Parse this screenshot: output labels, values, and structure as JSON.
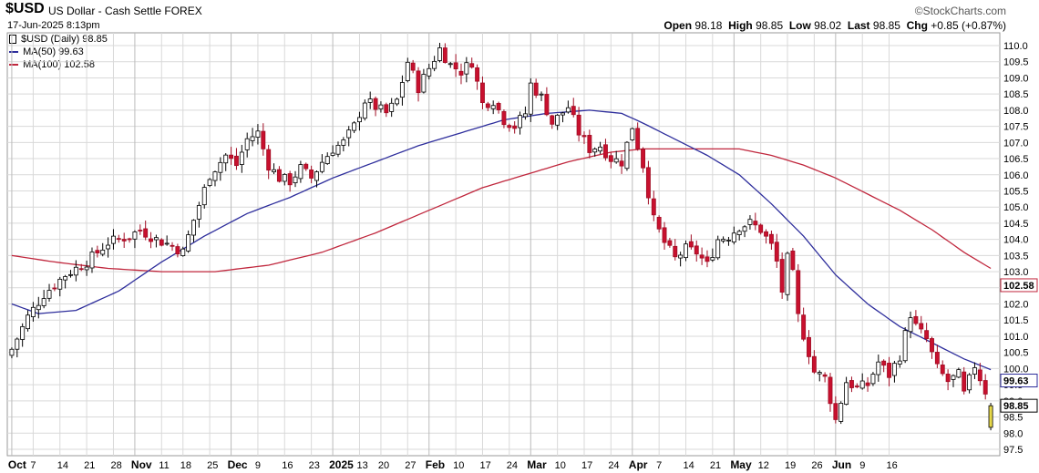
{
  "header": {
    "symbol": "$USD",
    "name": "US Dollar - Cash Settle",
    "exchange": "FOREX",
    "date": "17-Jun-2025 8:13pm",
    "brand": "©StockCharts.com",
    "open_label": "Open",
    "open": "98.18",
    "high_label": "High",
    "high": "98.85",
    "low_label": "Low",
    "low": "98.02",
    "last_label": "Last",
    "last": "98.85",
    "chg_label": "Chg",
    "chg": "+0.85 (+0.87%)"
  },
  "legend": {
    "price": "$USD (Daily) 98.85",
    "ma50": "MA(50) 99.63",
    "ma100": "MA(100) 102.58"
  },
  "colors": {
    "up": "#ffffff",
    "up_border": "#000000",
    "down": "#c8102e",
    "down_border": "#a00d24",
    "black_candle": "#000000",
    "last_candle": "#e6d84a",
    "ma50": "#2e2e9c",
    "ma100": "#c0273d",
    "grid": "#d9d9d9"
  },
  "chart_data": {
    "type": "candlestick",
    "series_name": "$USD (Daily)",
    "ylim": [
      97.5,
      110.0
    ],
    "y_ticks": [
      "97.5",
      "98.0",
      "98.5",
      "99.0",
      "99.5",
      "100.0",
      "100.5",
      "101.0",
      "101.5",
      "102.0",
      "102.5",
      "103.0",
      "103.5",
      "104.0",
      "104.5",
      "105.0",
      "105.5",
      "106.0",
      "106.5",
      "107.0",
      "107.5",
      "108.0",
      "108.5",
      "109.0",
      "109.5",
      "110.0"
    ],
    "x_ticks": [
      "Oct",
      "7",
      "14",
      "21",
      "28",
      "Nov",
      "11",
      "18",
      "25",
      "Dec",
      "9",
      "16",
      "23",
      "2025",
      "13",
      "20",
      "27",
      "Feb",
      "10",
      "17",
      "24",
      "Mar",
      "10",
      "17",
      "24",
      "Apr",
      "7",
      "14",
      "21",
      "May",
      "12",
      "19",
      "26",
      "Jun",
      "9",
      "16"
    ],
    "x_major": [
      "Oct",
      "Nov",
      "Dec",
      "2025",
      "Feb",
      "Mar",
      "Apr",
      "May",
      "Jun"
    ],
    "x_label_index": [
      0,
      4,
      9,
      14,
      19,
      23,
      28,
      32,
      37,
      41,
      46,
      51,
      56,
      60,
      65,
      69,
      74,
      78,
      83,
      88,
      93,
      97,
      102,
      107,
      112,
      116,
      121,
      126,
      131,
      135,
      140,
      145,
      150,
      154,
      159,
      164
    ],
    "n": 184,
    "anchors": [
      [
        0,
        100.6
      ],
      [
        3,
        101.6
      ],
      [
        6,
        102.3
      ],
      [
        10,
        102.9
      ],
      [
        14,
        103.3
      ],
      [
        18,
        103.9
      ],
      [
        22,
        104.1
      ],
      [
        24,
        104.3
      ],
      [
        27,
        104.0
      ],
      [
        30,
        103.8
      ],
      [
        32,
        103.6
      ],
      [
        34,
        104.6
      ],
      [
        37,
        106.0
      ],
      [
        40,
        106.6
      ],
      [
        42,
        106.3
      ],
      [
        44,
        107.1
      ],
      [
        46,
        107.3
      ],
      [
        48,
        106.3
      ],
      [
        50,
        105.9
      ],
      [
        52,
        105.8
      ],
      [
        54,
        106.2
      ],
      [
        56,
        105.9
      ],
      [
        58,
        106.4
      ],
      [
        60,
        106.8
      ],
      [
        62,
        107.0
      ],
      [
        64,
        107.5
      ],
      [
        66,
        108.3
      ],
      [
        68,
        108.1
      ],
      [
        70,
        107.9
      ],
      [
        72,
        108.3
      ],
      [
        74,
        109.5
      ],
      [
        76,
        108.7
      ],
      [
        78,
        109.3
      ],
      [
        80,
        109.9
      ],
      [
        82,
        109.4
      ],
      [
        84,
        109.2
      ],
      [
        86,
        109.5
      ],
      [
        88,
        108.2
      ],
      [
        90,
        108.3
      ],
      [
        92,
        107.7
      ],
      [
        94,
        107.5
      ],
      [
        96,
        107.9
      ],
      [
        97,
        108.8
      ],
      [
        99,
        108.4
      ],
      [
        101,
        107.6
      ],
      [
        104,
        108.1
      ],
      [
        106,
        107.3
      ],
      [
        108,
        106.8
      ],
      [
        110,
        106.9
      ],
      [
        112,
        106.5
      ],
      [
        114,
        106.4
      ],
      [
        116,
        107.5
      ],
      [
        117,
        106.9
      ],
      [
        118,
        106.3
      ],
      [
        120,
        104.6
      ],
      [
        122,
        103.9
      ],
      [
        124,
        103.4
      ],
      [
        126,
        103.7
      ],
      [
        128,
        103.6
      ],
      [
        130,
        103.2
      ],
      [
        132,
        104.0
      ],
      [
        134,
        104.1
      ],
      [
        136,
        104.4
      ],
      [
        138,
        104.5
      ],
      [
        140,
        104.3
      ],
      [
        142,
        103.8
      ],
      [
        143,
        103.3
      ],
      [
        144,
        102.4
      ],
      [
        145,
        103.4
      ],
      [
        146,
        102.9
      ],
      [
        147,
        101.6
      ],
      [
        149,
        100.5
      ],
      [
        150,
        99.9
      ],
      [
        152,
        99.7
      ],
      [
        154,
        98.4
      ],
      [
        156,
        99.6
      ],
      [
        158,
        99.4
      ],
      [
        160,
        99.5
      ],
      [
        162,
        100.2
      ],
      [
        164,
        99.8
      ],
      [
        166,
        100.4
      ],
      [
        168,
        101.7
      ],
      [
        169,
        101.3
      ],
      [
        171,
        100.9
      ],
      [
        173,
        100.0
      ],
      [
        175,
        99.6
      ],
      [
        177,
        99.8
      ],
      [
        178,
        99.2
      ],
      [
        180,
        100.1
      ],
      [
        182,
        99.3
      ],
      [
        184,
        98.9
      ],
      [
        185,
        98.4
      ],
      [
        186,
        99.1
      ],
      [
        187,
        98.7
      ],
      [
        188,
        97.9
      ],
      [
        189,
        98.2
      ],
      [
        190,
        98.85
      ]
    ],
    "ma50_anchors": [
      [
        0,
        102.0
      ],
      [
        5,
        101.7
      ],
      [
        12,
        101.8
      ],
      [
        20,
        102.4
      ],
      [
        28,
        103.3
      ],
      [
        36,
        104.1
      ],
      [
        44,
        104.8
      ],
      [
        52,
        105.3
      ],
      [
        60,
        105.9
      ],
      [
        68,
        106.4
      ],
      [
        76,
        106.9
      ],
      [
        84,
        107.3
      ],
      [
        92,
        107.7
      ],
      [
        100,
        107.9
      ],
      [
        108,
        108.0
      ],
      [
        114,
        107.9
      ],
      [
        118,
        107.6
      ],
      [
        124,
        107.1
      ],
      [
        130,
        106.6
      ],
      [
        136,
        106.0
      ],
      [
        142,
        105.1
      ],
      [
        148,
        104.1
      ],
      [
        154,
        102.9
      ],
      [
        160,
        102.0
      ],
      [
        166,
        101.3
      ],
      [
        172,
        100.8
      ],
      [
        178,
        100.3
      ],
      [
        184,
        99.9
      ],
      [
        190,
        99.63
      ]
    ],
    "ma100_anchors": [
      [
        0,
        103.5
      ],
      [
        8,
        103.3
      ],
      [
        18,
        103.1
      ],
      [
        28,
        103.0
      ],
      [
        38,
        103.0
      ],
      [
        48,
        103.2
      ],
      [
        58,
        103.6
      ],
      [
        68,
        104.2
      ],
      [
        78,
        104.9
      ],
      [
        88,
        105.6
      ],
      [
        96,
        106.0
      ],
      [
        104,
        106.4
      ],
      [
        112,
        106.7
      ],
      [
        118,
        106.8
      ],
      [
        124,
        106.8
      ],
      [
        130,
        106.8
      ],
      [
        136,
        106.8
      ],
      [
        142,
        106.6
      ],
      [
        148,
        106.3
      ],
      [
        154,
        105.9
      ],
      [
        160,
        105.4
      ],
      [
        166,
        104.9
      ],
      [
        172,
        104.3
      ],
      [
        178,
        103.6
      ],
      [
        184,
        103.0
      ],
      [
        190,
        102.58
      ]
    ],
    "last_price": "98.85",
    "ma50_last": "99.63",
    "ma100_last": "102.58",
    "grid": true
  }
}
